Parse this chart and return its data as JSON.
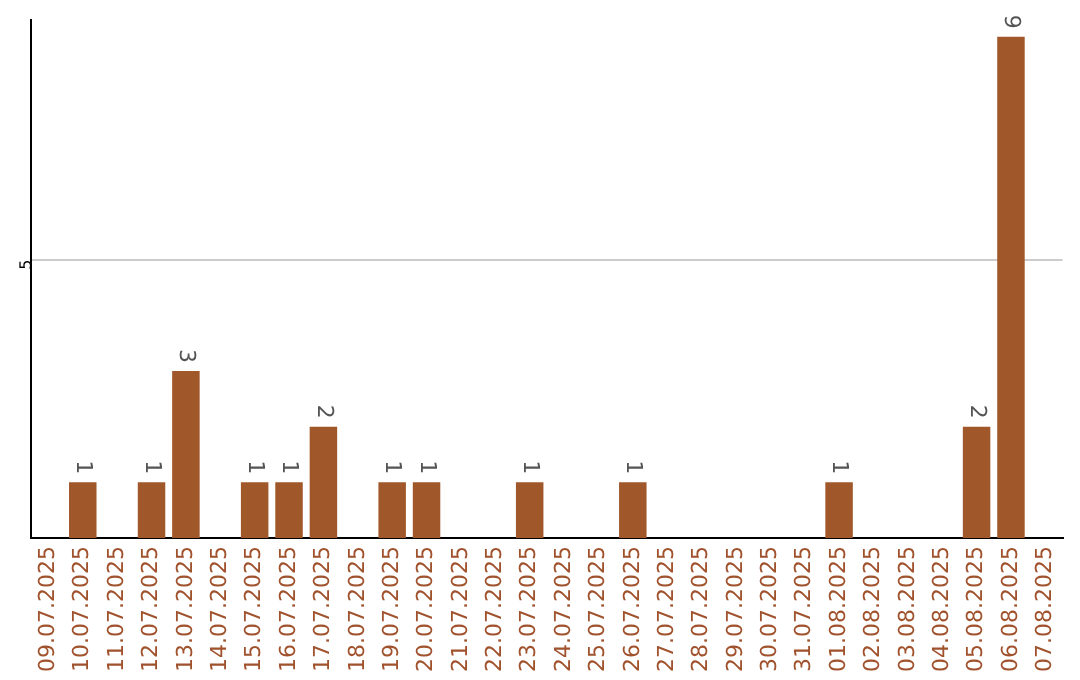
{
  "chart_data": {
    "type": "bar",
    "categories": [
      "09.07.2025",
      "10.07.2025",
      "11.07.2025",
      "12.07.2025",
      "13.07.2025",
      "14.07.2025",
      "15.07.2025",
      "16.07.2025",
      "17.07.2025",
      "18.07.2025",
      "19.07.2025",
      "20.07.2025",
      "21.07.2025",
      "22.07.2025",
      "23.07.2025",
      "24.07.2025",
      "25.07.2025",
      "26.07.2025",
      "27.07.2025",
      "28.07.2025",
      "29.07.2025",
      "30.07.2025",
      "31.07.2025",
      "01.08.2025",
      "02.08.2025",
      "03.08.2025",
      "04.08.2025",
      "05.08.2025",
      "06.08.2025",
      "07.08.2025"
    ],
    "values": [
      0,
      1,
      0,
      1,
      3,
      0,
      1,
      1,
      2,
      0,
      1,
      1,
      0,
      0,
      1,
      0,
      0,
      1,
      0,
      0,
      0,
      0,
      0,
      1,
      0,
      0,
      0,
      2,
      9,
      0
    ],
    "value_labels": [
      null,
      "1",
      null,
      "1",
      "3",
      null,
      "1",
      "1",
      "2",
      null,
      "1",
      "1",
      null,
      null,
      "1",
      null,
      null,
      "1",
      null,
      null,
      null,
      null,
      null,
      "1",
      null,
      null,
      null,
      "2",
      "9",
      null
    ],
    "color": "#a0582b",
    "ylim": [
      0,
      9.3
    ],
    "yticks": [
      5
    ],
    "grid": "y",
    "legend": false
  }
}
